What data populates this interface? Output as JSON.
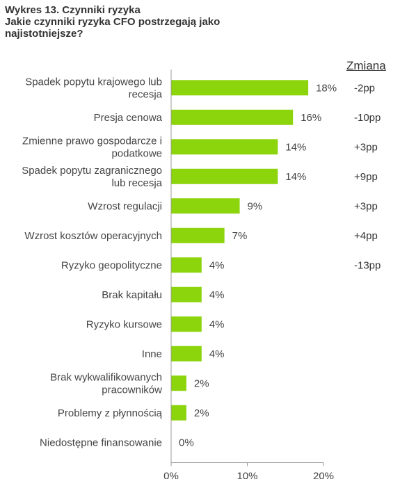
{
  "title": {
    "line1": "Wykres 13. Czynniki ryzyka",
    "line2": "Jakie czynniki ryzyka CFO postrzegają jako",
    "line3": "najistotniejsze?"
  },
  "change_header": "Zmiana",
  "colors": {
    "bar": "#8cd40c",
    "axis": "#999999"
  },
  "chart_data": {
    "type": "bar",
    "orientation": "horizontal",
    "categories": [
      [
        "Spadek popytu krajowego lub",
        "recesja"
      ],
      [
        "Presja cenowa"
      ],
      [
        "Zmienne prawo gospodarcze i",
        "podatkowe"
      ],
      [
        "Spadek popytu zagranicznego",
        "lub recesja"
      ],
      [
        "Wzrost regulacji"
      ],
      [
        "Wzrost kosztów operacyjnych"
      ],
      [
        "Ryzyko geopolityczne"
      ],
      [
        "Brak kapitału"
      ],
      [
        "Ryzyko kursowe"
      ],
      [
        "Inne"
      ],
      [
        "Brak wykwalifikowanych",
        "pracowników"
      ],
      [
        "Problemy z płynnością"
      ],
      [
        "Niedostępne finansowanie"
      ]
    ],
    "values": [
      18,
      16,
      14,
      14,
      9,
      7,
      4,
      4,
      4,
      4,
      2,
      2,
      0
    ],
    "value_labels": [
      "18%",
      "16%",
      "14%",
      "14%",
      "9%",
      "7%",
      "4%",
      "4%",
      "4%",
      "4%",
      "2%",
      "2%",
      "0%"
    ],
    "changes": [
      "-2pp",
      "-10pp",
      "+3pp",
      "+9pp",
      "+3pp",
      "+4pp",
      "-13pp",
      "",
      "",
      "",
      "",
      "",
      ""
    ],
    "xlim": [
      0,
      20
    ],
    "xticks": [
      0,
      10,
      20
    ],
    "xtick_labels": [
      "0%",
      "10%",
      "20%"
    ]
  }
}
